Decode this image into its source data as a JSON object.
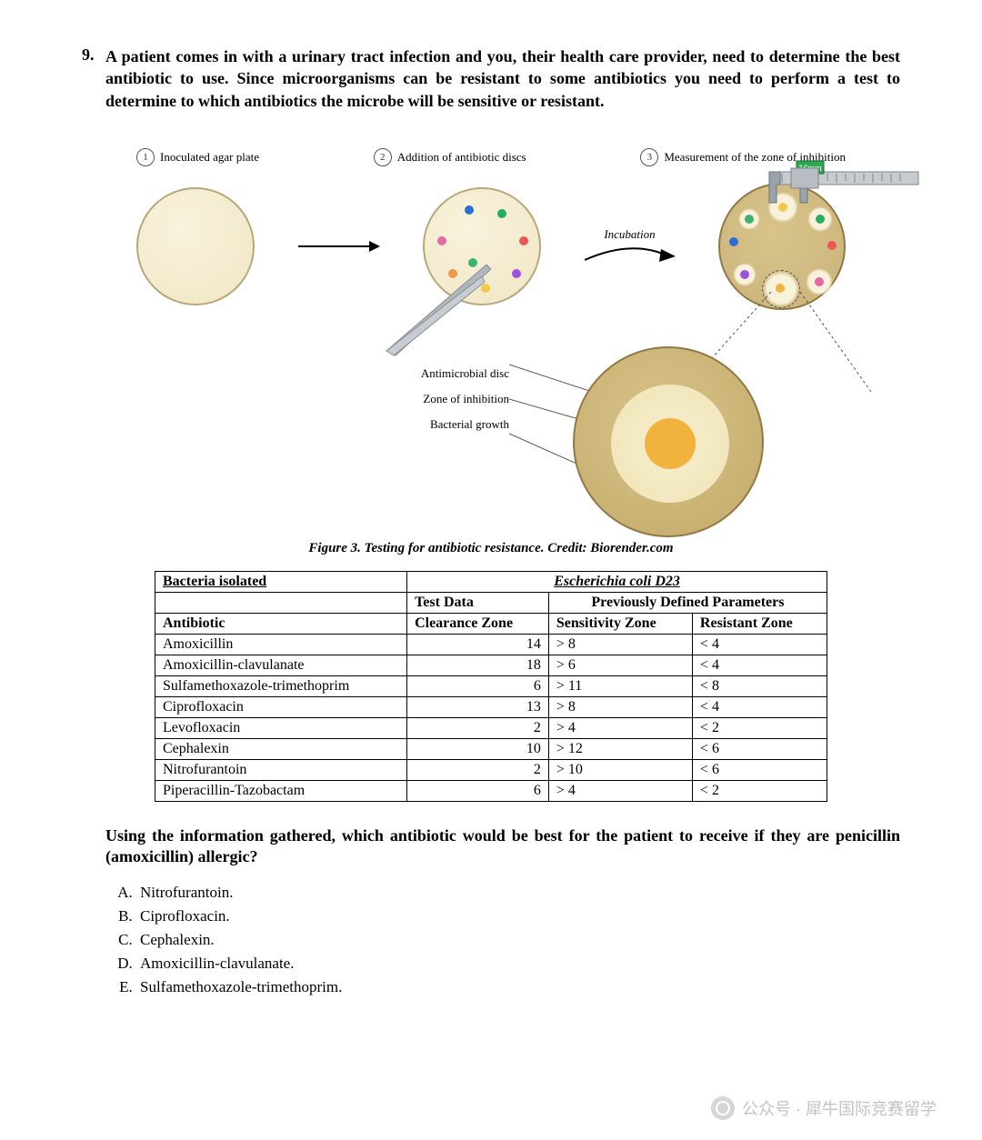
{
  "question": {
    "number": "9.",
    "text": "A patient comes in with a urinary tract infection and you, their health care provider, need to determine the best antibiotic to use. Since microorganisms can be resistant to some antibiotics you need to perform a test to determine to which antibiotics the microbe will be sensitive or resistant."
  },
  "figure": {
    "steps": [
      {
        "num": "1",
        "label": "Inoculated agar plate"
      },
      {
        "num": "2",
        "label": "Addition of antibiotic discs"
      },
      {
        "num": "3",
        "label": "Measurement of the zone of inhibition"
      }
    ],
    "incubation_label": "Incubation",
    "caliper_readout": "16mm",
    "zoom_labels": {
      "disc": "Antimicrobial disc",
      "zone": "Zone of inhibition",
      "growth": "Bacterial growth"
    },
    "caption": "Figure 3. Testing for antibiotic resistance. Credit: Biorender.com",
    "colors": {
      "agar_light": "#f9f3dd",
      "agar_dark": "#f0e6c4",
      "agar_border": "#b8a77a",
      "growth_brown": "#c9b27a",
      "halo": "#f8f2da",
      "disc_orange": "#f2b23e",
      "dot_green": "#3cb371",
      "dot_blue": "#2a6fd6",
      "dot_yellow": "#f2c94c",
      "dot_orange": "#f2994a",
      "dot_red": "#eb5757",
      "dot_purple": "#9b51e0",
      "dot_teal": "#27ae60",
      "dot_pink": "#e36aa7",
      "caliper_gray": "#9aa3ab",
      "tweezer_gray": "#b0b6bc"
    }
  },
  "table": {
    "header_bacteria": "Bacteria isolated",
    "header_species": "Escherichia coli D23",
    "header_testdata": "Test Data",
    "header_prev": "Previously Defined Parameters",
    "col_antibiotic": "Antibiotic",
    "col_clearance": "Clearance Zone",
    "col_sensitivity": "Sensitivity Zone",
    "col_resistant": "Resistant Zone",
    "rows": [
      {
        "name": "Amoxicillin",
        "clear": "14",
        "sens": "> 8",
        "res": "< 4"
      },
      {
        "name": "Amoxicillin-clavulanate",
        "clear": "18",
        "sens": "> 6",
        "res": "< 4"
      },
      {
        "name": "Sulfamethoxazole-trimethoprim",
        "clear": "6",
        "sens": "> 11",
        "res": "< 8"
      },
      {
        "name": "Ciprofloxacin",
        "clear": "13",
        "sens": "> 8",
        "res": "< 4"
      },
      {
        "name": "Levofloxacin",
        "clear": "2",
        "sens": "> 4",
        "res": "< 2"
      },
      {
        "name": "Cephalexin",
        "clear": "10",
        "sens": "> 12",
        "res": "< 6"
      },
      {
        "name": "Nitrofurantoin",
        "clear": "2",
        "sens": "> 10",
        "res": "< 6"
      },
      {
        "name": "Piperacillin-Tazobactam",
        "clear": "6",
        "sens": "> 4",
        "res": "< 2"
      }
    ]
  },
  "followup": "Using the information gathered, which antibiotic would be best for the patient to receive if they are penicillin (amoxicillin) allergic?",
  "choices": [
    "Nitrofurantoin.",
    "Ciprofloxacin.",
    "Cephalexin.",
    "Amoxicillin-clavulanate.",
    "Sulfamethoxazole-trimethoprim."
  ],
  "watermark": "公众号 · 犀牛国际竞赛留学"
}
